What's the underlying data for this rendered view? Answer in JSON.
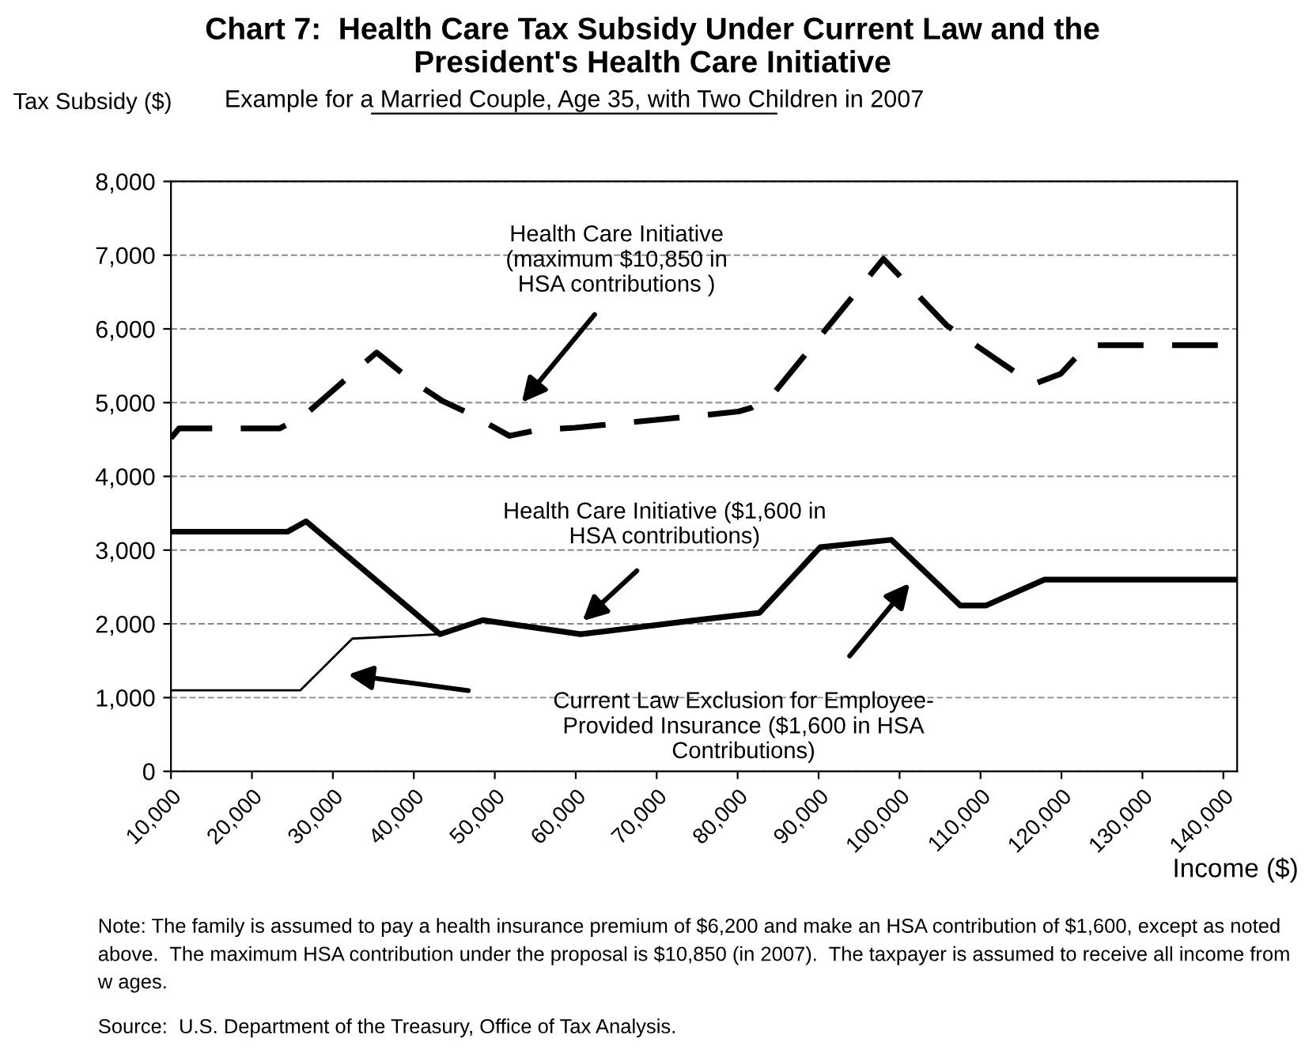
{
  "chart_data": {
    "type": "line",
    "title": "Chart 7:  Health Care Tax Subsidy Under Current Law and the\nPresident's Health Care Initiative",
    "subtitle": "Example for a Married Couple, Age 35, with Two Children in 2007",
    "ylabel": "Tax Subsidy ($)",
    "xlabel": "Income ($)",
    "xlim": [
      10000,
      141700
    ],
    "xticks": [
      {
        "value": 10000,
        "label": "10,000"
      },
      {
        "value": 20000,
        "label": "20,000"
      },
      {
        "value": 30000,
        "label": "30,000"
      },
      {
        "value": 40000,
        "label": "40,000"
      },
      {
        "value": 50000,
        "label": "50,000"
      },
      {
        "value": 60000,
        "label": "60,000"
      },
      {
        "value": 70000,
        "label": "70,000"
      },
      {
        "value": 80000,
        "label": "80,000"
      },
      {
        "value": 90000,
        "label": "90,000"
      },
      {
        "value": 100000,
        "label": "100,000"
      },
      {
        "value": 110000,
        "label": "110,000"
      },
      {
        "value": 120000,
        "label": "120,000"
      },
      {
        "value": 130000,
        "label": "130,000"
      },
      {
        "value": 140000,
        "label": "140,000"
      }
    ],
    "ylim": [
      0,
      8000
    ],
    "yticks": [
      0,
      {
        "value": 1000,
        "label": "1,000"
      },
      {
        "value": 2000,
        "label": "2,000"
      },
      {
        "value": 3000,
        "label": "3,000"
      },
      {
        "value": 4000,
        "label": "4,000"
      },
      {
        "value": 5000,
        "label": "5,000"
      },
      {
        "value": 6000,
        "label": "6,000"
      },
      {
        "value": 7000,
        "label": "7,000"
      },
      {
        "value": 8000,
        "label": "8,000"
      }
    ],
    "grid": "y",
    "series": [
      {
        "color": "#000000",
        "line_style": "dashed",
        "x": [
          10000,
          11000,
          23400,
          26400,
          35400,
          39700,
          43600,
          47100,
          51800,
          55400,
          59900,
          74900,
          80100,
          81700,
          84700,
          98000,
          105800,
          113400,
          116500,
          119900,
          123200,
          141700
        ],
        "values": [
          4520,
          4650,
          4650,
          4820,
          5680,
          5300,
          5020,
          4840,
          4550,
          4630,
          4660,
          4820,
          4880,
          4930,
          5160,
          6950,
          6050,
          5480,
          5250,
          5390,
          5780,
          5780
        ]
      },
      {
        "color": "#000000",
        "line_style": "solid",
        "x": [
          10000,
          24400,
          26700,
          43250,
          48500,
          60600,
          74900,
          82700,
          90200,
          99000,
          107500,
          110700,
          117900,
          141700
        ],
        "values": [
          3250,
          3250,
          3390,
          1860,
          2050,
          1860,
          2050,
          2150,
          3040,
          3140,
          2250,
          2250,
          2600,
          2600
        ]
      },
      {
        "color": "#000000",
        "line_style": "solid",
        "x": [
          10000,
          26000,
          32400,
          43250
        ],
        "values": [
          1100,
          1100,
          1800,
          1860
        ]
      }
    ],
    "annotations": [
      "Health Care Initiative\n(maximum $10,850 in\nHSA contributions )",
      "Health Care Initiative ($1,600 in\nHSA contributions)",
      "Current Law Exclusion for Employee-\nProvided Insurance ($1,600 in HSA\nContributions)",
      "Note: The family is assumed to pay a health insurance premium of $6,200 and make an HSA contribution of $1,600, except as noted above.  The maximum HSA contribution under the proposal is $10,850 (in 2007).  The taxpayer is assumed to receive all income from w ages.",
      "Source:  U.S. Department of the Treasury, Office of Tax Analysis."
    ]
  }
}
